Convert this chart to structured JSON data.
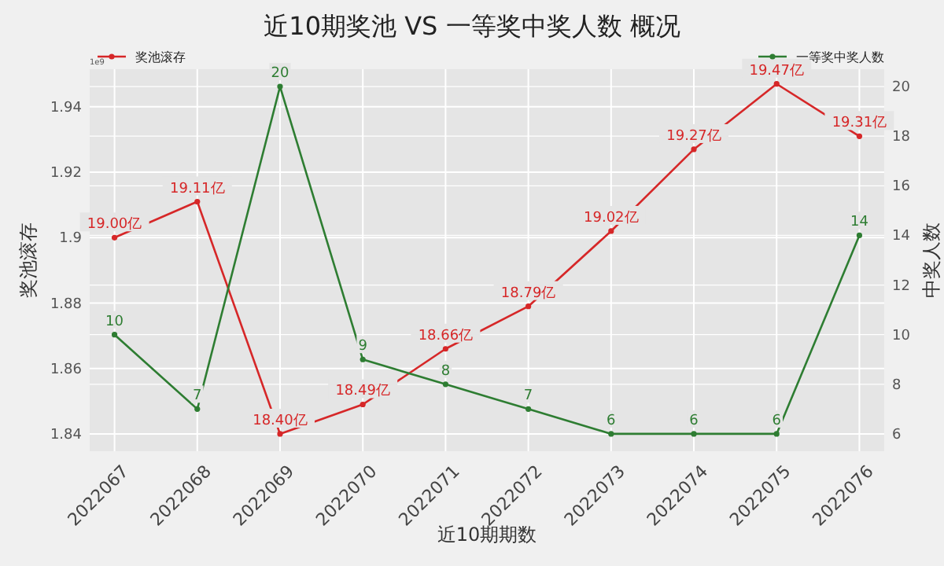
{
  "chart_data": {
    "type": "line",
    "title": "近10期奖池 VS 一等奖中奖人数 概况",
    "xlabel": "近10期期数",
    "ylabel": "奖池滚存",
    "y2label": "中奖人数",
    "categories": [
      "2022067",
      "2022068",
      "2022069",
      "2022070",
      "2022071",
      "2022072",
      "2022073",
      "2022074",
      "2022075",
      "2022076"
    ],
    "series": [
      {
        "name": "奖池滚存",
        "color": "#d62728",
        "values": [
          1.9,
          1.911,
          1.84,
          1.849,
          1.866,
          1.879,
          1.902,
          1.927,
          1.947,
          1.931
        ]
      },
      {
        "name": "一等奖中奖人数",
        "color": "#2e7d32",
        "axis": "y2",
        "values": [
          10,
          7,
          20,
          9,
          8,
          7,
          6,
          6,
          6,
          14
        ],
        "value_labels": [
          "10",
          "7",
          "20",
          "9",
          "8",
          "7",
          "6",
          "6",
          "6",
          "14"
        ]
      }
    ],
    "ylim": [
      1.8347,
      1.9515
    ],
    "yticks": [
      1.84,
      1.86,
      1.88,
      1.9,
      1.92,
      1.94
    ],
    "y2lim": [
      5.3,
      20.7
    ],
    "y2ticks": [
      6,
      8,
      10,
      12,
      14,
      16,
      18,
      20
    ],
    "annotations": [
      "1e9",
      {
        "text": "19.00亿",
        "x": "2022067",
        "y": 1.9
      },
      {
        "text": "19.11亿",
        "x": "2022068",
        "y": 1.911
      },
      {
        "text": "18.40亿",
        "x": "2022069",
        "y": 1.84
      },
      {
        "text": "18.49亿",
        "x": "2022070",
        "y": 1.849
      },
      {
        "text": "18.66亿",
        "x": "2022071",
        "y": 1.866
      },
      {
        "text": "18.79亿",
        "x": "2022072",
        "y": 1.879
      },
      {
        "text": "19.02亿",
        "x": "2022073",
        "y": 1.902
      },
      {
        "text": "19.27亿",
        "x": "2022074",
        "y": 1.927
      },
      {
        "text": "19.47亿",
        "x": "2022075",
        "y": 1.947
      },
      {
        "text": "19.31亿",
        "x": "2022076",
        "y": 1.931
      }
    ],
    "grid": true,
    "legend": "top",
    "marker": "circle",
    "line_style": "solid"
  }
}
